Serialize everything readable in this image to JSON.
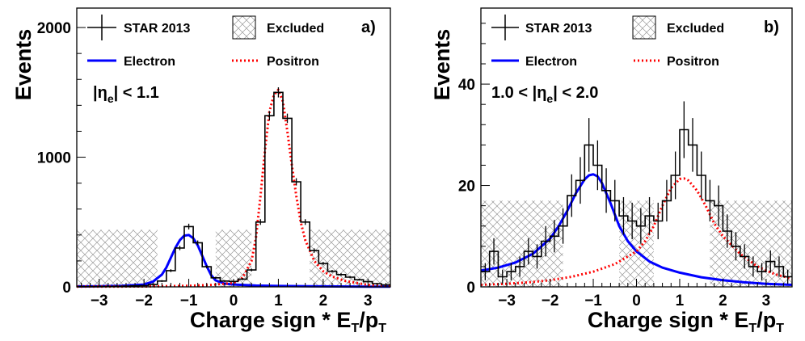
{
  "chart_data": [
    {
      "type": "line",
      "panel_label": "a)",
      "xlabel_parts": {
        "base": "Charge sign * E",
        "sub1": "T",
        "mid": "/p",
        "sub2": "T"
      },
      "ylabel": "Events",
      "xlim": [
        -3.5,
        3.5
      ],
      "ylim": [
        0,
        2150
      ],
      "x_ticks": [
        -3,
        -2,
        -1,
        0,
        1,
        2,
        3
      ],
      "y_ticks": [
        0,
        1000,
        2000
      ],
      "excluded_regions": [
        [
          -3.5,
          -1.7,
          440
        ],
        [
          -0.4,
          0.4,
          440
        ],
        [
          1.7,
          3.5,
          440
        ]
      ],
      "annotation": {
        "pre": "|η",
        "sub": "e",
        "post": "| < 1.1"
      },
      "legend": {
        "data": "STAR 2013",
        "excluded": "Excluded",
        "electron": "Electron",
        "positron": "Positron"
      },
      "colors": {
        "data": "#000000",
        "electron": "#0000ff",
        "positron": "#ff0000"
      },
      "series": [
        {
          "name": "STAR 2013",
          "kind": "histogram",
          "bin_edges": [
            -3.5,
            -3.3,
            -3.1,
            -2.9,
            -2.7,
            -2.5,
            -2.3,
            -2.1,
            -1.9,
            -1.7,
            -1.5,
            -1.3,
            -1.1,
            -0.9,
            -0.7,
            -0.5,
            -0.3,
            -0.1,
            0.1,
            0.3,
            0.5,
            0.7,
            0.9,
            1.1,
            1.3,
            1.5,
            1.7,
            1.9,
            2.1,
            2.3,
            2.5,
            2.7,
            2.9,
            3.1,
            3.3,
            3.5
          ],
          "values": [
            2,
            2,
            3,
            3,
            4,
            5,
            8,
            10,
            18,
            45,
            125,
            300,
            465,
            340,
            155,
            70,
            45,
            42,
            60,
            130,
            500,
            1320,
            1500,
            1300,
            810,
            500,
            280,
            180,
            120,
            95,
            75,
            55,
            40,
            25,
            15
          ],
          "errors": [
            1,
            1,
            2,
            2,
            2,
            2,
            3,
            3,
            4,
            7,
            11,
            17,
            22,
            18,
            12,
            8,
            7,
            6,
            8,
            11,
            22,
            36,
            39,
            36,
            28,
            22,
            17,
            13,
            11,
            10,
            9,
            7,
            6,
            5,
            4
          ]
        },
        {
          "name": "Electron",
          "kind": "curve",
          "x": [
            -3.5,
            -3.0,
            -2.5,
            -2.0,
            -1.8,
            -1.6,
            -1.5,
            -1.4,
            -1.3,
            -1.2,
            -1.1,
            -1.0,
            -0.9,
            -0.8,
            -0.7,
            -0.6,
            -0.5,
            -0.4,
            -0.2,
            0.0,
            0.5,
            1.0,
            2.0,
            3.0,
            3.5
          ],
          "y": [
            3,
            5,
            8,
            18,
            40,
            95,
            150,
            225,
            300,
            360,
            395,
            400,
            375,
            320,
            240,
            160,
            90,
            50,
            25,
            18,
            10,
            7,
            4,
            2,
            2
          ]
        },
        {
          "name": "Positron",
          "kind": "curve",
          "x": [
            -3.5,
            -2.0,
            -1.0,
            -0.5,
            0.0,
            0.2,
            0.4,
            0.5,
            0.6,
            0.7,
            0.8,
            0.9,
            1.0,
            1.1,
            1.2,
            1.3,
            1.4,
            1.5,
            1.6,
            1.8,
            2.0,
            2.2,
            2.5,
            3.0,
            3.5
          ],
          "y": [
            2,
            3,
            8,
            15,
            30,
            70,
            200,
            380,
            700,
            1050,
            1350,
            1480,
            1520,
            1430,
            1200,
            940,
            700,
            500,
            360,
            200,
            120,
            80,
            45,
            15,
            5
          ]
        }
      ]
    },
    {
      "type": "line",
      "panel_label": "b)",
      "xlabel_parts": {
        "base": "Charge sign * E",
        "sub1": "T",
        "mid": "/p",
        "sub2": "T"
      },
      "ylabel": "Events",
      "xlim": [
        -3.6,
        3.6
      ],
      "ylim": [
        0,
        55
      ],
      "x_ticks": [
        -3,
        -2,
        -1,
        0,
        1,
        2,
        3
      ],
      "y_ticks": [
        0,
        20,
        40
      ],
      "excluded_regions": [
        [
          -3.6,
          -1.7,
          17
        ],
        [
          -0.4,
          0.4,
          17
        ],
        [
          1.7,
          3.6,
          17
        ]
      ],
      "annotation": {
        "pre": "1.0 < |η",
        "sub": "e",
        "post": "| < 2.0"
      },
      "legend": {
        "data": "STAR 2013",
        "excluded": "Excluded",
        "electron": "Electron",
        "positron": "Positron"
      },
      "colors": {
        "data": "#000000",
        "electron": "#0000ff",
        "positron": "#ff0000"
      },
      "series": [
        {
          "name": "STAR 2013",
          "kind": "histogram",
          "bin_edges": [
            -3.6,
            -3.4,
            -3.2,
            -3.0,
            -2.8,
            -2.6,
            -2.4,
            -2.2,
            -2.0,
            -1.8,
            -1.6,
            -1.4,
            -1.2,
            -1.0,
            -0.8,
            -0.6,
            -0.4,
            -0.2,
            0.0,
            0.2,
            0.4,
            0.6,
            0.8,
            1.0,
            1.2,
            1.4,
            1.6,
            1.8,
            2.0,
            2.2,
            2.4,
            2.6,
            2.8,
            3.0,
            3.2,
            3.4,
            3.6
          ],
          "values": [
            3,
            7,
            2,
            3,
            4,
            7,
            6,
            9,
            10,
            12,
            18,
            21,
            28,
            24,
            19,
            17,
            14,
            13,
            12,
            14,
            13,
            17,
            22,
            31,
            28,
            22,
            17,
            16,
            11,
            8,
            6,
            4,
            3,
            5,
            4,
            2
          ],
          "errors": [
            1.7,
            2.6,
            1.4,
            1.7,
            2,
            2.6,
            2.4,
            3,
            3.2,
            3.5,
            4.2,
            4.6,
            5.3,
            4.9,
            4.4,
            4.1,
            3.7,
            3.6,
            3.5,
            3.7,
            3.6,
            4.1,
            4.7,
            5.6,
            5.3,
            4.7,
            4.1,
            4,
            3.3,
            2.8,
            2.4,
            2,
            1.7,
            2.2,
            2,
            1.4
          ]
        },
        {
          "name": "Electron",
          "kind": "curve",
          "x": [
            -3.6,
            -3.2,
            -2.8,
            -2.4,
            -2.0,
            -1.8,
            -1.6,
            -1.4,
            -1.2,
            -1.1,
            -1.0,
            -0.9,
            -0.8,
            -0.6,
            -0.4,
            -0.2,
            0.0,
            0.3,
            0.6,
            1.0,
            1.5,
            2.0,
            2.5,
            3.0,
            3.6
          ],
          "y": [
            3.2,
            3.8,
            4.8,
            6.5,
            9.5,
            12,
            15,
            18.5,
            21.2,
            22,
            22.2,
            21.8,
            20.5,
            16.5,
            12,
            9,
            7,
            5,
            3.8,
            2.8,
            1.9,
            1.3,
            0.9,
            0.6,
            0.4
          ]
        },
        {
          "name": "Positron",
          "kind": "curve",
          "x": [
            -3.6,
            -3.0,
            -2.5,
            -2.0,
            -1.5,
            -1.0,
            -0.5,
            0.0,
            0.2,
            0.4,
            0.6,
            0.8,
            1.0,
            1.1,
            1.2,
            1.4,
            1.6,
            1.8,
            2.0,
            2.4,
            2.8,
            3.2,
            3.6
          ],
          "y": [
            0.4,
            0.6,
            0.9,
            1.3,
            2,
            3,
            4.5,
            7,
            9,
            12,
            16,
            19.5,
            21.3,
            21.4,
            21,
            19,
            16,
            12.5,
            10,
            6.5,
            4,
            2.5,
            1.6
          ]
        }
      ]
    }
  ]
}
